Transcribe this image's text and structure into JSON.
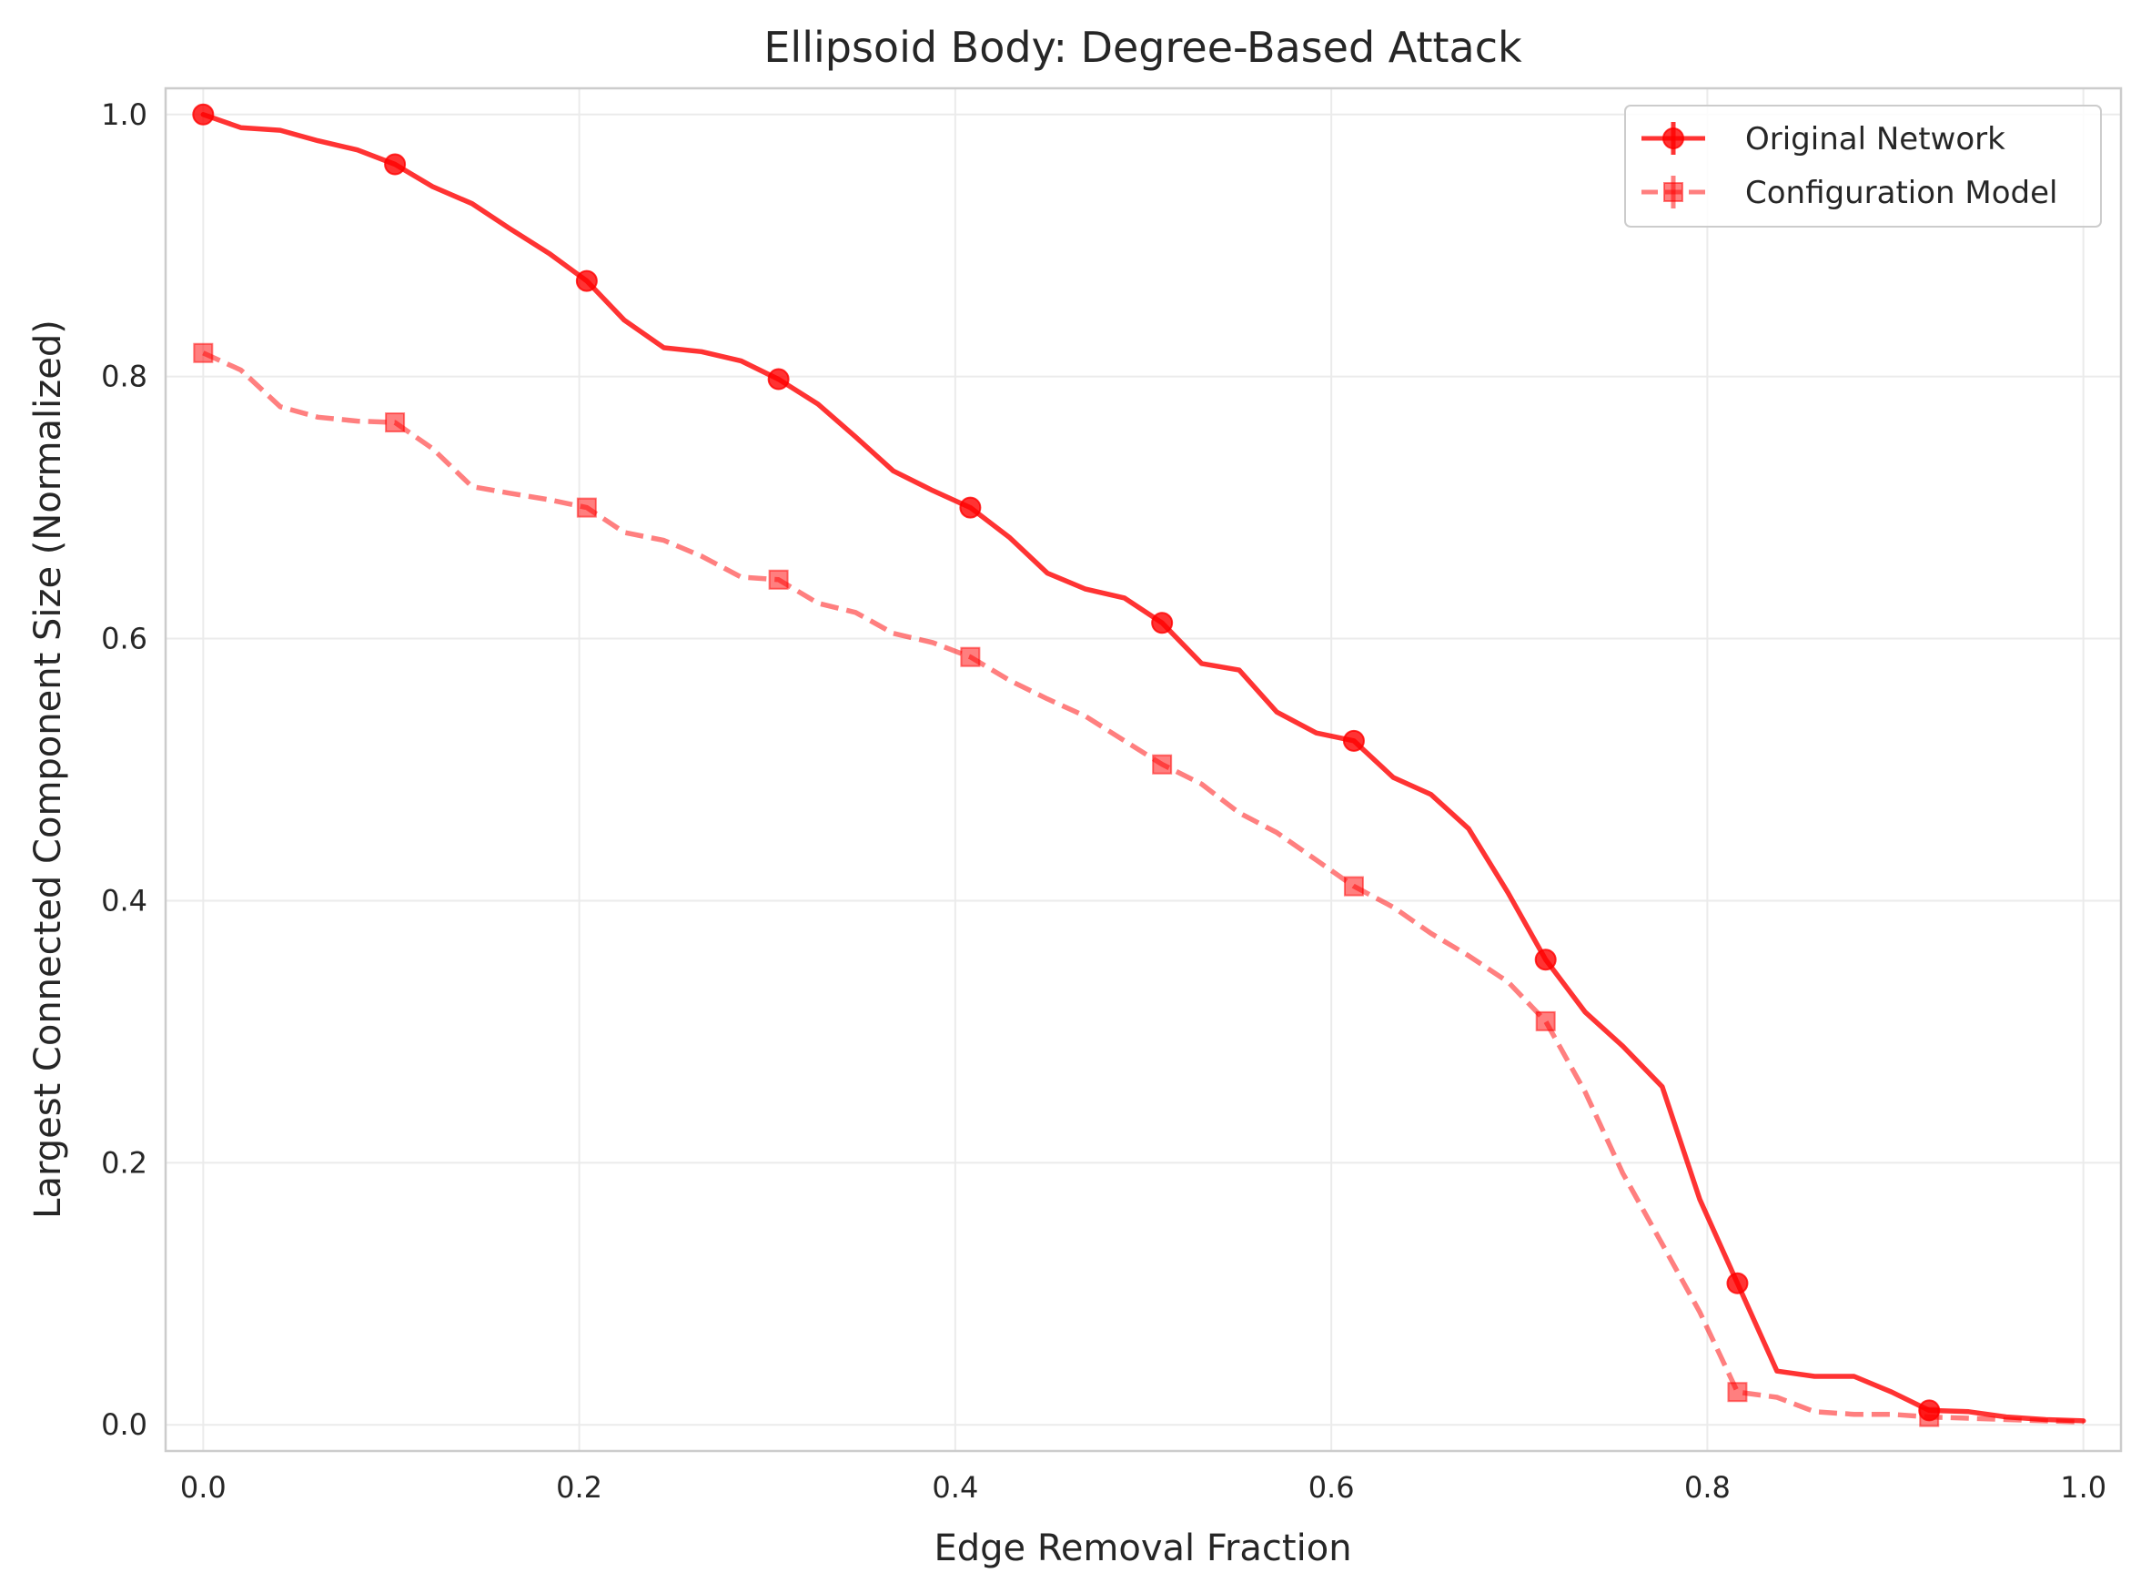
{
  "chart_data": {
    "type": "line",
    "title": "Ellipsoid Body: Degree-Based Attack",
    "xlabel": "Edge Removal Fraction",
    "ylabel": "Largest Connected Component Size (Normalized)",
    "xlim": [
      -0.02,
      1.02
    ],
    "ylim": [
      -0.02,
      1.02
    ],
    "xticks": [
      0.0,
      0.2,
      0.4,
      0.6,
      0.8,
      1.0
    ],
    "xtick_labels": [
      "0.0",
      "0.2",
      "0.4",
      "0.6",
      "0.8",
      "1.0"
    ],
    "yticks": [
      0.0,
      0.2,
      0.4,
      0.6,
      0.8,
      1.0
    ],
    "ytick_labels": [
      "0.0",
      "0.2",
      "0.4",
      "0.6",
      "0.8",
      "1.0"
    ],
    "grid": true,
    "legend_position": "top-right",
    "series": [
      {
        "name": "Original Network",
        "color": "#ff0000",
        "line_style": "solid",
        "marker": "circle",
        "x": [
          0.0,
          0.02,
          0.041,
          0.061,
          0.082,
          0.102,
          0.122,
          0.143,
          0.163,
          0.184,
          0.204,
          0.224,
          0.245,
          0.265,
          0.286,
          0.306,
          0.327,
          0.347,
          0.367,
          0.388,
          0.408,
          0.429,
          0.449,
          0.469,
          0.49,
          0.51,
          0.531,
          0.551,
          0.571,
          0.592,
          0.612,
          0.633,
          0.653,
          0.673,
          0.694,
          0.714,
          0.735,
          0.755,
          0.776,
          0.796,
          0.816,
          0.837,
          0.857,
          0.878,
          0.898,
          0.918,
          0.939,
          0.959,
          0.98,
          1.0
        ],
        "y": [
          1.0,
          0.99,
          0.988,
          0.98,
          0.973,
          0.962,
          0.945,
          0.932,
          0.913,
          0.894,
          0.873,
          0.843,
          0.822,
          0.819,
          0.812,
          0.798,
          0.779,
          0.754,
          0.728,
          0.713,
          0.7,
          0.677,
          0.65,
          0.638,
          0.631,
          0.612,
          0.581,
          0.576,
          0.544,
          0.528,
          0.522,
          0.494,
          0.481,
          0.455,
          0.406,
          0.355,
          0.315,
          0.289,
          0.258,
          0.172,
          0.108,
          0.041,
          0.037,
          0.037,
          0.025,
          0.011,
          0.01,
          0.006,
          0.004,
          0.003
        ],
        "marker_x": [
          0.0,
          0.102,
          0.204,
          0.306,
          0.408,
          0.51,
          0.612,
          0.714,
          0.816,
          0.918
        ],
        "marker_y": [
          1.0,
          0.962,
          0.873,
          0.798,
          0.7,
          0.612,
          0.522,
          0.355,
          0.108,
          0.011
        ]
      },
      {
        "name": "Configuration Model",
        "color": "#f07070",
        "line_style": "dashed",
        "marker": "square",
        "x": [
          0.0,
          0.02,
          0.041,
          0.061,
          0.082,
          0.102,
          0.122,
          0.143,
          0.163,
          0.184,
          0.204,
          0.224,
          0.245,
          0.265,
          0.286,
          0.306,
          0.327,
          0.347,
          0.367,
          0.388,
          0.408,
          0.429,
          0.449,
          0.469,
          0.49,
          0.51,
          0.531,
          0.551,
          0.571,
          0.592,
          0.612,
          0.633,
          0.653,
          0.673,
          0.694,
          0.714,
          0.735,
          0.755,
          0.776,
          0.796,
          0.816,
          0.837,
          0.857,
          0.878,
          0.898,
          0.918,
          0.939,
          0.959,
          0.98,
          1.0
        ],
        "y": [
          0.818,
          0.805,
          0.777,
          0.769,
          0.766,
          0.765,
          0.745,
          0.716,
          0.711,
          0.706,
          0.7,
          0.681,
          0.675,
          0.663,
          0.647,
          0.645,
          0.627,
          0.62,
          0.604,
          0.597,
          0.586,
          0.568,
          0.554,
          0.541,
          0.522,
          0.504,
          0.489,
          0.467,
          0.452,
          0.431,
          0.411,
          0.395,
          0.375,
          0.358,
          0.338,
          0.308,
          0.254,
          0.192,
          0.138,
          0.086,
          0.025,
          0.021,
          0.01,
          0.008,
          0.008,
          0.006,
          0.005,
          0.004,
          0.003,
          0.002
        ],
        "marker_x": [
          0.0,
          0.102,
          0.204,
          0.306,
          0.408,
          0.51,
          0.612,
          0.714,
          0.816,
          0.918
        ],
        "marker_y": [
          0.818,
          0.765,
          0.7,
          0.645,
          0.586,
          0.504,
          0.411,
          0.308,
          0.025,
          0.006
        ]
      }
    ]
  }
}
